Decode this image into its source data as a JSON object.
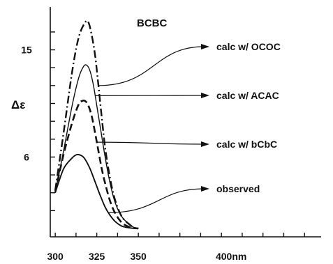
{
  "chart_data": {
    "type": "line",
    "title": "BCBC",
    "xlabel": "",
    "ylabel": "Δε",
    "xlim": [
      297,
      460
    ],
    "ylim": [
      -0.7,
      18.6
    ],
    "x_ticks": [
      300,
      325,
      350,
      400
    ],
    "x_tick_labels": [
      "300",
      "325",
      "350",
      "400nm"
    ],
    "y_ticks": [
      6,
      15
    ],
    "y_tick_labels": [
      "6",
      "15"
    ],
    "grid": false,
    "legend": "right, labels with arrows pointing to curves",
    "series": [
      {
        "name": "calc w/ OCOC",
        "style": "dash-dot",
        "x": [
          300,
          305,
          310,
          314,
          318,
          320,
          322,
          324,
          326,
          328,
          330,
          333,
          336,
          340,
          345,
          348,
          350
        ],
        "y": [
          3.2,
          8.0,
          13.0,
          16.0,
          17.3,
          17.3,
          16.2,
          14.5,
          12.0,
          9.3,
          6.8,
          4.2,
          2.4,
          1.0,
          0.3,
          0.05,
          0
        ]
      },
      {
        "name": "calc w/ ACAC",
        "style": "solid-thin",
        "x": [
          300,
          305,
          310,
          314,
          317,
          319,
          321,
          323,
          325,
          327,
          330,
          333,
          336,
          340,
          345,
          348,
          350
        ],
        "y": [
          3.0,
          6.5,
          10.2,
          12.6,
          13.6,
          13.7,
          13.2,
          12.0,
          10.3,
          8.6,
          6.0,
          3.8,
          2.2,
          1.0,
          0.3,
          0.05,
          0
        ]
      },
      {
        "name": "calc w/ bCbC",
        "style": "dashed",
        "x": [
          300,
          305,
          310,
          314,
          316,
          318,
          320,
          322,
          324,
          326,
          328,
          330,
          333,
          336,
          340,
          345,
          350
        ],
        "y": [
          3.1,
          6.2,
          8.8,
          10.4,
          10.7,
          10.7,
          10.3,
          9.4,
          8.0,
          6.5,
          5.0,
          3.8,
          2.3,
          1.3,
          0.5,
          0.1,
          0
        ]
      },
      {
        "name": "observed",
        "style": "solid",
        "x": [
          300,
          305,
          310,
          313,
          316,
          318,
          321,
          324,
          327,
          330,
          333,
          336,
          340,
          345,
          348,
          350
        ],
        "y": [
          3.0,
          5.0,
          5.9,
          6.2,
          6.1,
          5.8,
          5.0,
          3.9,
          2.8,
          1.8,
          1.1,
          0.6,
          0.2,
          0.05,
          0,
          0
        ]
      }
    ],
    "annotations": [
      {
        "text": "calc w/ OCOC",
        "series": 0
      },
      {
        "text": "calc w/ ACAC",
        "series": 1
      },
      {
        "text": "calc w/ bCbC",
        "series": 2
      },
      {
        "text": "observed",
        "series": 3
      }
    ]
  }
}
